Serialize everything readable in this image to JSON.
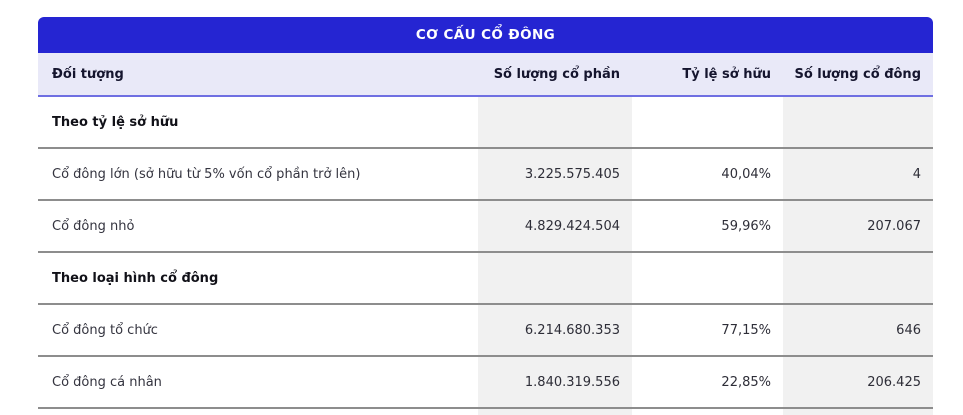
{
  "table": {
    "title": "CƠ CẤU CỔ ĐÔNG",
    "columns": [
      "Đối tượng",
      "Số lượng cổ phần",
      "Tỷ lệ sở hữu",
      "Số lượng cổ đông"
    ],
    "rows": [
      {
        "type": "section",
        "label": "Theo tỷ lệ sở hữu",
        "shares": "",
        "ratio": "",
        "holders": ""
      },
      {
        "type": "data",
        "label": "Cổ đông lớn (sở hữu từ 5% vốn cổ phần trở lên)",
        "shares": "3.225.575.405",
        "ratio": "40,04%",
        "holders": "4"
      },
      {
        "type": "data",
        "label": "Cổ đông nhỏ",
        "shares": "4.829.424.504",
        "ratio": "59,96%",
        "holders": "207.067"
      },
      {
        "type": "section",
        "label": "Theo loại hình cổ đông",
        "shares": "",
        "ratio": "",
        "holders": ""
      },
      {
        "type": "data",
        "label": "Cổ đông tổ chức",
        "shares": "6.214.680.353",
        "ratio": "77,15%",
        "holders": "646"
      },
      {
        "type": "data",
        "label": "Cổ đông cá nhân",
        "shares": "1.840.319.556",
        "ratio": "22,85%",
        "holders": "206.425"
      }
    ],
    "colors": {
      "banner_bg": "#2525d2",
      "banner_text": "#ffffff",
      "header_bg": "#e9e9f8",
      "header_underline": "#6f6fe2",
      "shaded_column_bg": "#f1f1f1",
      "row_separator": "#8d8d8d",
      "body_text": "#34343f"
    }
  }
}
